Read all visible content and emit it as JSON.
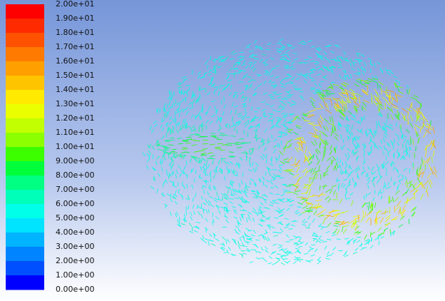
{
  "colorbar": {
    "labels": [
      "2.00e+01",
      "1.90e+01",
      "1.80e+01",
      "1.70e+01",
      "1.60e+01",
      "1.50e+01",
      "1.40e+01",
      "1.30e+01",
      "1.20e+01",
      "1.10e+01",
      "1.00e+01",
      "9.00e+00",
      "8.00e+00",
      "7.00e+00",
      "6.00e+00",
      "5.00e+00",
      "4.00e+00",
      "3.00e+00",
      "2.00e+00",
      "1.00e+00",
      "0.00e+00"
    ],
    "colors": [
      "#ff0000",
      "#ff2a00",
      "#ff5200",
      "#ff7a00",
      "#ffa000",
      "#ffc400",
      "#ffea00",
      "#eaff00",
      "#c2ff00",
      "#8cff00",
      "#3cff00",
      "#00ff3a",
      "#00ff82",
      "#00ffb8",
      "#00ffe8",
      "#00e4ff",
      "#00b4ff",
      "#0084ff",
      "#0050ff",
      "#0000ff"
    ]
  }
}
